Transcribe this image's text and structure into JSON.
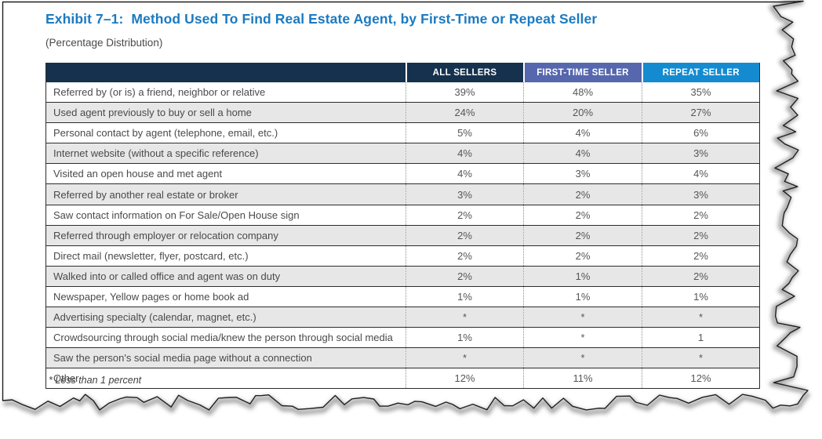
{
  "page": {
    "title": "Exhibit 7–1:  Method Used To Find Real Estate Agent, by First-Time or Repeat Seller",
    "subtitle": "(Percentage Distribution)",
    "footnote": "* Less than 1 percent"
  },
  "table": {
    "columns": [
      "",
      "ALL SELLERS",
      "FIRST-TIME SELLER",
      "REPEAT SELLER"
    ],
    "rows": [
      {
        "method": "Referred by (or is) a friend, neighbor or relative",
        "all_sellers": "39%",
        "first_time_seller": "48%",
        "repeat_seller": "35%"
      },
      {
        "method": "Used agent previously to buy or sell a home",
        "all_sellers": "24%",
        "first_time_seller": "20%",
        "repeat_seller": "27%"
      },
      {
        "method": "Personal contact by agent (telephone, email, etc.)",
        "all_sellers": "5%",
        "first_time_seller": "4%",
        "repeat_seller": "6%"
      },
      {
        "method": "Internet website (without a specific reference)",
        "all_sellers": "4%",
        "first_time_seller": "4%",
        "repeat_seller": "3%"
      },
      {
        "method": "Visited an open house and met agent",
        "all_sellers": "4%",
        "first_time_seller": "3%",
        "repeat_seller": "4%"
      },
      {
        "method": "Referred by another real estate or broker",
        "all_sellers": "3%",
        "first_time_seller": "2%",
        "repeat_seller": "3%"
      },
      {
        "method": "Saw contact information on For Sale/Open House sign",
        "all_sellers": "2%",
        "first_time_seller": "2%",
        "repeat_seller": "2%"
      },
      {
        "method": "Referred through employer or relocation company",
        "all_sellers": "2%",
        "first_time_seller": "2%",
        "repeat_seller": "2%"
      },
      {
        "method": "Direct mail (newsletter, flyer, postcard, etc.)",
        "all_sellers": "2%",
        "first_time_seller": "2%",
        "repeat_seller": "2%"
      },
      {
        "method": "Walked into or called office and agent was on duty",
        "all_sellers": "2%",
        "first_time_seller": "1%",
        "repeat_seller": "2%"
      },
      {
        "method": "Newspaper, Yellow pages or home book ad",
        "all_sellers": "1%",
        "first_time_seller": "1%",
        "repeat_seller": "1%"
      },
      {
        "method": "Advertising specialty (calendar, magnet, etc.)",
        "all_sellers": "*",
        "first_time_seller": "*",
        "repeat_seller": "*"
      },
      {
        "method": "Crowdsourcing through social media/knew the person through social media",
        "all_sellers": "1%",
        "first_time_seller": "*",
        "repeat_seller": "1"
      },
      {
        "method": "Saw the person's social media page without a connection",
        "all_sellers": "*",
        "first_time_seller": "*",
        "repeat_seller": "*"
      },
      {
        "method": "Other",
        "all_sellers": "12%",
        "first_time_seller": "11%",
        "repeat_seller": "12%"
      }
    ]
  },
  "colors": {
    "title_blue": "#1b7ac1",
    "header_navy": "#16314e",
    "header_first_time_blue": "#5667ae",
    "header_repeat_blue": "#148bd0",
    "shaded_row_gray": "#e7e7e7"
  }
}
